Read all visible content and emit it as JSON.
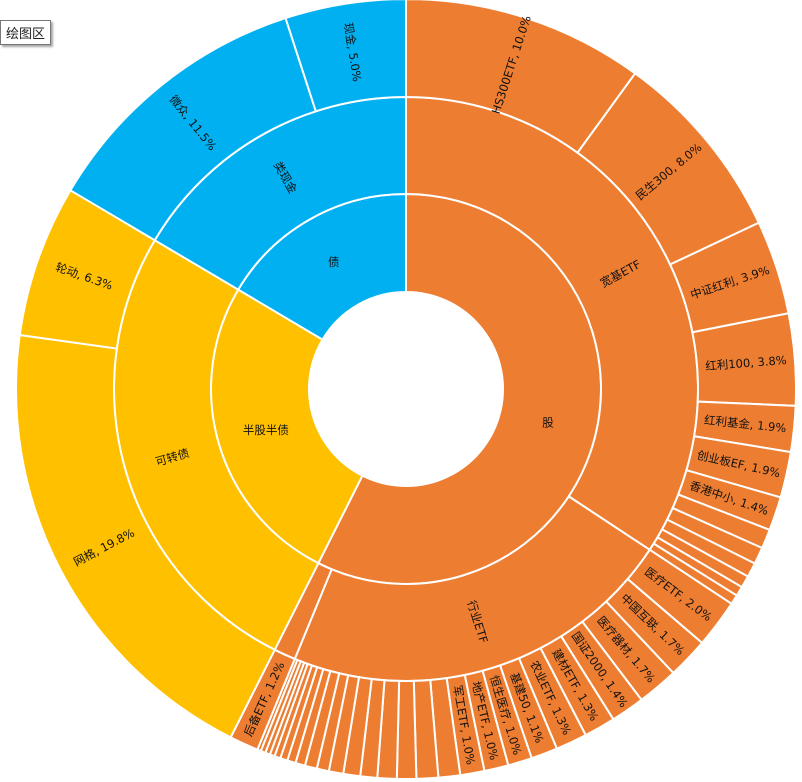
{
  "tooltip": "绘图区",
  "chart_data": {
    "type": "sunburst",
    "title": "",
    "colors": {
      "股": "#ED7D31",
      "半股半债": "#FFC000",
      "债": "#00B0F0"
    },
    "tree": [
      {
        "name": "股",
        "children": [
          {
            "name": "宽基ETF",
            "children": [
              {
                "name": "HS300ETF",
                "value": 10.0,
                "label": "HS300ETF, 10.0%"
              },
              {
                "name": "民生300",
                "value": 8.0,
                "label": "民生300, 8.0%"
              },
              {
                "name": "中证红利",
                "value": 3.9,
                "label": "中证红利, 3.9%"
              },
              {
                "name": "红利100",
                "value": 3.8,
                "label": "红利100, 3.8%"
              },
              {
                "name": "红利基金",
                "value": 1.9,
                "label": "红利基金, 1.9%"
              },
              {
                "name": "创业板EF",
                "value": 1.9,
                "label": "创业板EF, 1.9%"
              },
              {
                "name": "香港中小",
                "value": 1.4,
                "label": "香港中小, 1.4%"
              },
              {
                "name": "",
                "value": 0.8
              },
              {
                "name": "",
                "value": 0.7
              },
              {
                "name": "",
                "value": 0.6
              },
              {
                "name": "",
                "value": 0.5
              },
              {
                "name": "",
                "value": 0.4
              },
              {
                "name": "",
                "value": 0.4
              }
            ]
          },
          {
            "name": "行业ETF",
            "children": [
              {
                "name": "医疗ETF",
                "value": 2.0,
                "label": "医疗ETF, 2.0%"
              },
              {
                "name": "中国互联",
                "value": 1.7,
                "label": "中国互联, 1.7%"
              },
              {
                "name": "医疗器材",
                "value": 1.7,
                "label": "医疗器材, 1.7%"
              },
              {
                "name": "国证2000",
                "value": 1.4,
                "label": "国证2000, 1.4%"
              },
              {
                "name": "建材ETF",
                "value": 1.3,
                "label": "建材ETF, 1.3%"
              },
              {
                "name": "农业ETF",
                "value": 1.3,
                "label": "农业ETF, 1.3%"
              },
              {
                "name": "基建50",
                "value": 1.1,
                "label": "基建50, 1.1%"
              },
              {
                "name": "恒生医疗",
                "value": 1.0,
                "label": "恒生医疗, 1.0%"
              },
              {
                "name": "地产ETF",
                "value": 1.0,
                "label": "地产ETF, 1.0%"
              },
              {
                "name": "军工ETF",
                "value": 1.0,
                "label": "军工ETF, 1.0%"
              },
              {
                "name": "",
                "value": 0.9
              },
              {
                "name": "",
                "value": 0.9
              },
              {
                "name": "",
                "value": 0.8
              },
              {
                "name": "",
                "value": 0.8
              },
              {
                "name": "",
                "value": 0.7
              },
              {
                "name": "",
                "value": 0.7
              },
              {
                "name": "",
                "value": 0.6
              },
              {
                "name": "",
                "value": 0.5
              },
              {
                "name": "",
                "value": 0.5
              },
              {
                "name": "",
                "value": 0.4
              },
              {
                "name": "",
                "value": 0.35
              },
              {
                "name": "",
                "value": 0.3
              },
              {
                "name": "",
                "value": 0.25
              },
              {
                "name": "",
                "value": 0.2
              },
              {
                "name": "",
                "value": 0.2
              },
              {
                "name": "",
                "value": 0.2
              },
              {
                "name": "",
                "value": 0.15
              }
            ]
          },
          {
            "name": "",
            "children": [
              {
                "name": "后备ETF",
                "value": 1.2,
                "label": "后备ETF, 1.2%"
              }
            ]
          }
        ]
      },
      {
        "name": "半股半债",
        "children": [
          {
            "name": "可转债",
            "children": [
              {
                "name": "网格",
                "value": 19.8,
                "label": "网格, 19.8%"
              },
              {
                "name": "轮动",
                "value": 6.3,
                "label": "轮动, 6.3%"
              }
            ]
          }
        ]
      },
      {
        "name": "债",
        "children": [
          {
            "name": "类现金",
            "children": [
              {
                "name": "微众",
                "value": 11.5,
                "label": "微众, 11.5%"
              },
              {
                "name": "现金",
                "value": 5.0,
                "label": "现金, 5.0%"
              }
            ]
          }
        ]
      }
    ]
  }
}
